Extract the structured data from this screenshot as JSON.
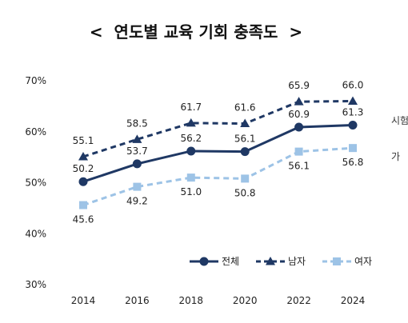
{
  "chart_data": {
    "type": "line",
    "title": "<  연도별 교육 기회 충족도  >",
    "x": [
      "2014",
      "2016",
      "2018",
      "2020",
      "2022",
      "2024"
    ],
    "ylim": [
      30,
      70
    ],
    "yticks": [
      "30%",
      "40%",
      "50%",
      "60%",
      "70%"
    ],
    "grid": false,
    "legend": "bottom-right",
    "series": [
      {
        "name": "전체",
        "values": [
          50.2,
          53.7,
          56.2,
          56.1,
          60.9,
          61.3
        ],
        "color": "#1f3864",
        "style": "solid",
        "marker": "circle"
      },
      {
        "name": "남자",
        "values": [
          55.1,
          58.5,
          61.7,
          61.6,
          65.9,
          66.0
        ],
        "color": "#1f3864",
        "style": "dashed",
        "marker": "triangle"
      },
      {
        "name": "여자",
        "values": [
          45.6,
          49.2,
          51.0,
          50.8,
          56.1,
          56.8
        ],
        "color": "#9dc3e6",
        "style": "dashed",
        "marker": "square"
      }
    ],
    "side_notes": [
      "시험",
      "가"
    ]
  }
}
